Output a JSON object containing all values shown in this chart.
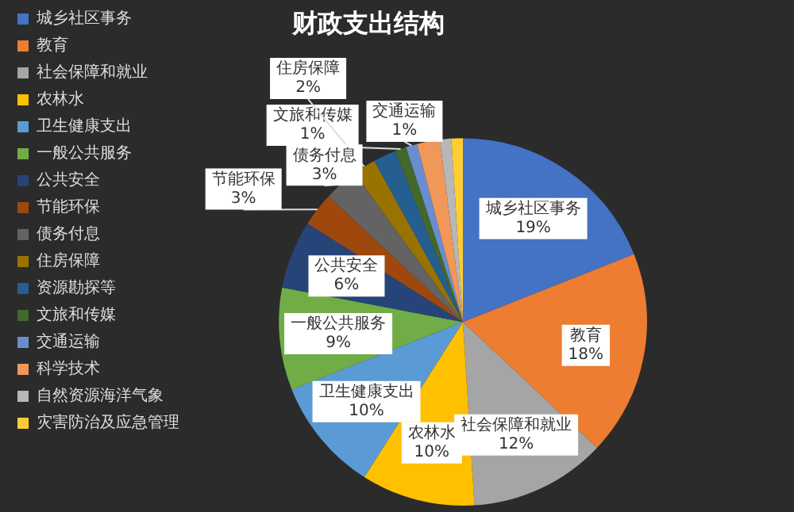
{
  "chart_data": {
    "type": "pie",
    "title": "财政支出结构",
    "categories": [
      "城乡社区事务",
      "教育",
      "社会保障和就业",
      "农林水",
      "卫生健康支出",
      "一般公共服务",
      "公共安全",
      "节能环保",
      "债务付息",
      "住房保障",
      "资源勘探等",
      "文旅和传媒",
      "交通运输",
      "科学技术",
      "自然资源海洋气象",
      "灾害防治及应急管理"
    ],
    "values": [
      19,
      18,
      12,
      10,
      10,
      9,
      6,
      3,
      3,
      2,
      2,
      1,
      1,
      2,
      1,
      1
    ],
    "value_labels": [
      "19%",
      "18%",
      "12%",
      "10%",
      "10%",
      "9%",
      "6%",
      "3%",
      "3%",
      "2%",
      null,
      "1%",
      "1%",
      null,
      null,
      null
    ],
    "colors": [
      "#4472c4",
      "#ed7d31",
      "#a5a5a5",
      "#ffc000",
      "#5b9bd5",
      "#70ad47",
      "#264478",
      "#9e480e",
      "#636363",
      "#997300",
      "#255e91",
      "#43682b",
      "#698ed0",
      "#f1975a",
      "#b7b7b7",
      "#ffcd33"
    ],
    "legend": "left"
  }
}
